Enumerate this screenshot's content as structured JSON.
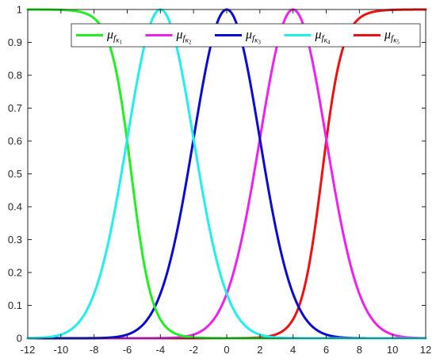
{
  "chart_data": {
    "type": "line",
    "xlim": [
      -12,
      12
    ],
    "ylim": [
      0,
      1
    ],
    "x_ticks": [
      "-12",
      "-10",
      "-8",
      "-6",
      "-4",
      "-2",
      "0",
      "2",
      "4",
      "6",
      "8",
      "10",
      "12"
    ],
    "y_ticks": [
      "0",
      "0.1",
      "0.2",
      "0.3",
      "0.4",
      "0.5",
      "0.6",
      "0.7",
      "0.8",
      "0.9",
      "1"
    ],
    "grid": false,
    "legend": {
      "position": "top",
      "orientation": "horizontal"
    },
    "series": [
      {
        "name": "μfκ1",
        "legend_symbol": "μ",
        "legend_sub": "f",
        "legend_subsub": "κ",
        "legend_index": "1",
        "color": "#22ee22",
        "shape": "z-shaped",
        "x": [
          -12,
          -9,
          -8,
          -7.5,
          -7,
          -6.5,
          -6,
          -5.5,
          -5,
          -4.5,
          -4,
          -3.5,
          12
        ],
        "y": [
          1,
          1,
          0.99,
          0.96,
          0.88,
          0.75,
          0.55,
          0.33,
          0.16,
          0.05,
          0.01,
          0,
          0
        ]
      },
      {
        "name": "μfκ2",
        "legend_symbol": "μ",
        "legend_sub": "f",
        "legend_subsub": "κ",
        "legend_index": "2",
        "color": "#ee22ee",
        "shape": "gaussian",
        "x": [
          -12,
          -2,
          -1,
          0,
          1,
          2,
          3,
          4,
          5,
          6,
          7,
          8,
          9,
          10,
          12
        ],
        "y": [
          0,
          0,
          0.01,
          0.13,
          0.32,
          0.61,
          0.88,
          1,
          0.88,
          0.61,
          0.32,
          0.13,
          0.04,
          0.01,
          0
        ]
      },
      {
        "name": "μfκ3",
        "legend_symbol": "μ",
        "legend_sub": "f",
        "legend_subsub": "κ",
        "legend_index": "3",
        "color": "#0a0ad0",
        "shape": "gaussian",
        "x": [
          -12,
          -6,
          -5,
          -4,
          -3,
          -2,
          -1,
          0,
          1,
          2,
          3,
          4,
          5,
          6,
          12
        ],
        "y": [
          0,
          0.01,
          0.04,
          0.13,
          0.32,
          0.61,
          0.88,
          1,
          0.88,
          0.61,
          0.32,
          0.13,
          0.04,
          0.01,
          0
        ]
      },
      {
        "name": "μfκ4",
        "legend_symbol": "μ",
        "legend_sub": "f",
        "legend_subsub": "κ",
        "legend_index": "4",
        "color": "#22eeee",
        "shape": "gaussian",
        "x": [
          -12,
          -10,
          -9,
          -8,
          -7,
          -6,
          -5,
          -4,
          -3,
          -2,
          -1,
          0,
          1,
          2,
          12
        ],
        "y": [
          0,
          0.01,
          0.04,
          0.13,
          0.32,
          0.61,
          0.88,
          1,
          0.88,
          0.61,
          0.32,
          0.13,
          0.04,
          0.01,
          0
        ]
      },
      {
        "name": "μfκ5",
        "legend_symbol": "μ",
        "legend_sub": "f",
        "legend_subsub": "κ",
        "legend_index": "5",
        "color": "#ee1111",
        "shape": "s-shaped",
        "x": [
          -12,
          3.5,
          4,
          4.5,
          5,
          5.5,
          6,
          6.5,
          7,
          7.5,
          8,
          9,
          12
        ],
        "y": [
          0,
          0,
          0.01,
          0.05,
          0.16,
          0.33,
          0.55,
          0.75,
          0.88,
          0.96,
          0.99,
          1,
          1
        ]
      }
    ]
  }
}
